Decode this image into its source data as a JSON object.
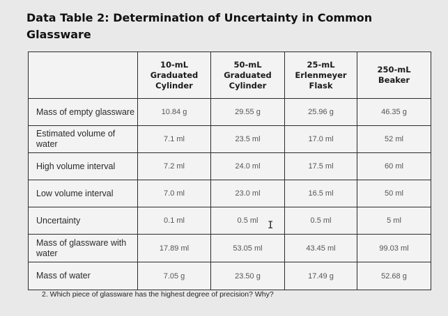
{
  "title": "Data Table 2: Determination of Uncertainty in Common Glassware",
  "table": {
    "headers": [
      "",
      "10-mL\nGraduated\nCylinder",
      "50-mL\nGraduated\nCylinder",
      "25-mL\nErlenmeyer\nFlask",
      "250-mL\nBeaker"
    ],
    "rows": [
      {
        "label": "Mass of empty glassware",
        "values": [
          "10.84 g",
          "29.55 g",
          "25.96 g",
          "46.35 g"
        ]
      },
      {
        "label": "Estimated volume of water",
        "values": [
          "7.1 ml",
          "23.5 ml",
          "17.0 ml",
          "52 ml"
        ]
      },
      {
        "label": "High volume interval",
        "values": [
          "7.2 ml",
          "24.0 ml",
          "17.5 ml",
          "60 ml"
        ]
      },
      {
        "label": "Low volume interval",
        "values": [
          "7.0 ml",
          "23.0 ml",
          "16.5 ml",
          "50 ml"
        ]
      },
      {
        "label": "Uncertainty",
        "values": [
          "0.1 ml",
          "0.5 ml",
          "0.5 ml",
          "5 ml"
        ]
      },
      {
        "label": "Mass of glassware with water",
        "values": [
          "17.89 ml",
          "53.05 ml",
          "43.45 ml",
          "99.03 ml"
        ]
      },
      {
        "label": "Mass of water",
        "values": [
          "7.05 g",
          "23.50 g",
          "17.49 g",
          "52.68 g"
        ]
      }
    ]
  },
  "cursor_glyph": "I",
  "question": "2.   Which piece of glassware has the highest degree of precision? Why?"
}
